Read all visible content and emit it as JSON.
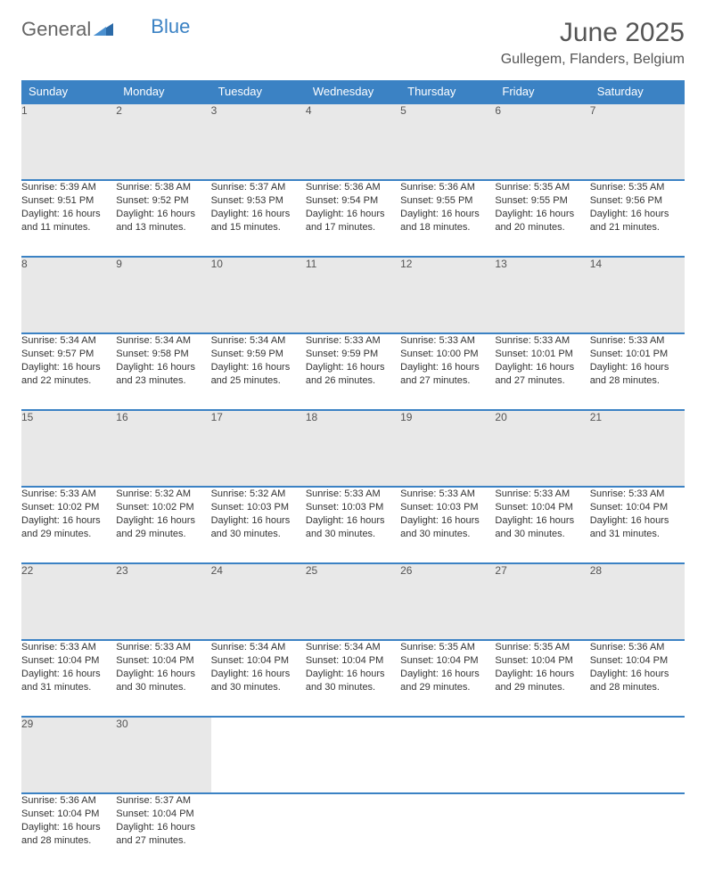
{
  "logo": {
    "general": "General",
    "blue": "Blue"
  },
  "title": "June 2025",
  "location": "Gullegem, Flanders, Belgium",
  "colors": {
    "header_bg": "#3b82c4",
    "header_text": "#ffffff",
    "daynum_bg": "#e8e8e8",
    "border": "#3b82c4",
    "body_text": "#333333",
    "title_text": "#555555"
  },
  "weekdays": [
    "Sunday",
    "Monday",
    "Tuesday",
    "Wednesday",
    "Thursday",
    "Friday",
    "Saturday"
  ],
  "weeks": [
    [
      {
        "n": "1",
        "sr": "Sunrise: 5:39 AM",
        "ss": "Sunset: 9:51 PM",
        "dl": "Daylight: 16 hours and 11 minutes."
      },
      {
        "n": "2",
        "sr": "Sunrise: 5:38 AM",
        "ss": "Sunset: 9:52 PM",
        "dl": "Daylight: 16 hours and 13 minutes."
      },
      {
        "n": "3",
        "sr": "Sunrise: 5:37 AM",
        "ss": "Sunset: 9:53 PM",
        "dl": "Daylight: 16 hours and 15 minutes."
      },
      {
        "n": "4",
        "sr": "Sunrise: 5:36 AM",
        "ss": "Sunset: 9:54 PM",
        "dl": "Daylight: 16 hours and 17 minutes."
      },
      {
        "n": "5",
        "sr": "Sunrise: 5:36 AM",
        "ss": "Sunset: 9:55 PM",
        "dl": "Daylight: 16 hours and 18 minutes."
      },
      {
        "n": "6",
        "sr": "Sunrise: 5:35 AM",
        "ss": "Sunset: 9:55 PM",
        "dl": "Daylight: 16 hours and 20 minutes."
      },
      {
        "n": "7",
        "sr": "Sunrise: 5:35 AM",
        "ss": "Sunset: 9:56 PM",
        "dl": "Daylight: 16 hours and 21 minutes."
      }
    ],
    [
      {
        "n": "8",
        "sr": "Sunrise: 5:34 AM",
        "ss": "Sunset: 9:57 PM",
        "dl": "Daylight: 16 hours and 22 minutes."
      },
      {
        "n": "9",
        "sr": "Sunrise: 5:34 AM",
        "ss": "Sunset: 9:58 PM",
        "dl": "Daylight: 16 hours and 23 minutes."
      },
      {
        "n": "10",
        "sr": "Sunrise: 5:34 AM",
        "ss": "Sunset: 9:59 PM",
        "dl": "Daylight: 16 hours and 25 minutes."
      },
      {
        "n": "11",
        "sr": "Sunrise: 5:33 AM",
        "ss": "Sunset: 9:59 PM",
        "dl": "Daylight: 16 hours and 26 minutes."
      },
      {
        "n": "12",
        "sr": "Sunrise: 5:33 AM",
        "ss": "Sunset: 10:00 PM",
        "dl": "Daylight: 16 hours and 27 minutes."
      },
      {
        "n": "13",
        "sr": "Sunrise: 5:33 AM",
        "ss": "Sunset: 10:01 PM",
        "dl": "Daylight: 16 hours and 27 minutes."
      },
      {
        "n": "14",
        "sr": "Sunrise: 5:33 AM",
        "ss": "Sunset: 10:01 PM",
        "dl": "Daylight: 16 hours and 28 minutes."
      }
    ],
    [
      {
        "n": "15",
        "sr": "Sunrise: 5:33 AM",
        "ss": "Sunset: 10:02 PM",
        "dl": "Daylight: 16 hours and 29 minutes."
      },
      {
        "n": "16",
        "sr": "Sunrise: 5:32 AM",
        "ss": "Sunset: 10:02 PM",
        "dl": "Daylight: 16 hours and 29 minutes."
      },
      {
        "n": "17",
        "sr": "Sunrise: 5:32 AM",
        "ss": "Sunset: 10:03 PM",
        "dl": "Daylight: 16 hours and 30 minutes."
      },
      {
        "n": "18",
        "sr": "Sunrise: 5:33 AM",
        "ss": "Sunset: 10:03 PM",
        "dl": "Daylight: 16 hours and 30 minutes."
      },
      {
        "n": "19",
        "sr": "Sunrise: 5:33 AM",
        "ss": "Sunset: 10:03 PM",
        "dl": "Daylight: 16 hours and 30 minutes."
      },
      {
        "n": "20",
        "sr": "Sunrise: 5:33 AM",
        "ss": "Sunset: 10:04 PM",
        "dl": "Daylight: 16 hours and 30 minutes."
      },
      {
        "n": "21",
        "sr": "Sunrise: 5:33 AM",
        "ss": "Sunset: 10:04 PM",
        "dl": "Daylight: 16 hours and 31 minutes."
      }
    ],
    [
      {
        "n": "22",
        "sr": "Sunrise: 5:33 AM",
        "ss": "Sunset: 10:04 PM",
        "dl": "Daylight: 16 hours and 31 minutes."
      },
      {
        "n": "23",
        "sr": "Sunrise: 5:33 AM",
        "ss": "Sunset: 10:04 PM",
        "dl": "Daylight: 16 hours and 30 minutes."
      },
      {
        "n": "24",
        "sr": "Sunrise: 5:34 AM",
        "ss": "Sunset: 10:04 PM",
        "dl": "Daylight: 16 hours and 30 minutes."
      },
      {
        "n": "25",
        "sr": "Sunrise: 5:34 AM",
        "ss": "Sunset: 10:04 PM",
        "dl": "Daylight: 16 hours and 30 minutes."
      },
      {
        "n": "26",
        "sr": "Sunrise: 5:35 AM",
        "ss": "Sunset: 10:04 PM",
        "dl": "Daylight: 16 hours and 29 minutes."
      },
      {
        "n": "27",
        "sr": "Sunrise: 5:35 AM",
        "ss": "Sunset: 10:04 PM",
        "dl": "Daylight: 16 hours and 29 minutes."
      },
      {
        "n": "28",
        "sr": "Sunrise: 5:36 AM",
        "ss": "Sunset: 10:04 PM",
        "dl": "Daylight: 16 hours and 28 minutes."
      }
    ],
    [
      {
        "n": "29",
        "sr": "Sunrise: 5:36 AM",
        "ss": "Sunset: 10:04 PM",
        "dl": "Daylight: 16 hours and 28 minutes."
      },
      {
        "n": "30",
        "sr": "Sunrise: 5:37 AM",
        "ss": "Sunset: 10:04 PM",
        "dl": "Daylight: 16 hours and 27 minutes."
      },
      null,
      null,
      null,
      null,
      null
    ]
  ]
}
